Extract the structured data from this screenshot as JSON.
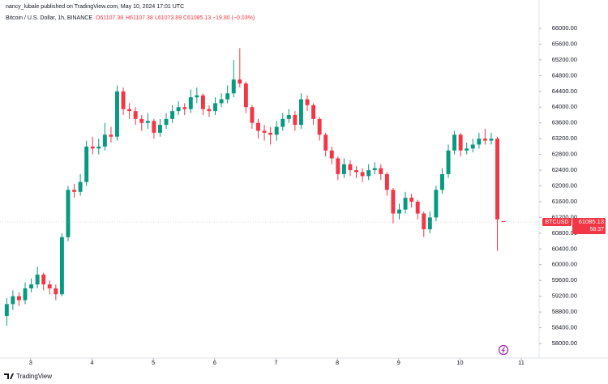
{
  "header": {
    "publisher": "nancy_lubale published on TradingView.com, May 10, 2024 17:01 UTC"
  },
  "legend": {
    "symbol": "Bitcoin / U.S. Dollar, 1h, BINANCE",
    "ohlc": [
      "O61107.38",
      "H61107.38",
      "L61073.89",
      "C61085.13"
    ],
    "change": "−19.80 (−0.03%)"
  },
  "footer": {
    "brand": "TradingView"
  },
  "chart_data": {
    "type": "candlestick",
    "x": [
      2.61,
      2.71,
      2.81,
      2.91,
      3.01,
      3.11,
      3.21,
      3.31,
      3.41,
      3.51,
      3.61,
      3.71,
      3.81,
      3.91,
      4.01,
      4.11,
      4.21,
      4.31,
      4.41,
      4.51,
      4.61,
      4.71,
      4.81,
      4.91,
      5.01,
      5.11,
      5.21,
      5.31,
      5.41,
      5.51,
      5.61,
      5.71,
      5.81,
      5.91,
      6.01,
      6.11,
      6.21,
      6.31,
      6.41,
      6.51,
      6.61,
      6.71,
      6.81,
      6.91,
      7.01,
      7.11,
      7.21,
      7.31,
      7.41,
      7.51,
      7.61,
      7.71,
      7.81,
      7.91,
      8.01,
      8.11,
      8.21,
      8.31,
      8.41,
      8.51,
      8.61,
      8.71,
      8.81,
      8.91,
      9.01,
      9.11,
      9.21,
      9.31,
      9.41,
      9.51,
      9.61,
      9.71,
      9.81,
      9.91,
      10.01,
      10.11,
      10.21,
      10.31,
      10.41,
      10.51,
      10.61,
      10.71
    ],
    "open": [
      58700,
      59000,
      59200,
      59100,
      59400,
      59500,
      59750,
      59500,
      59400,
      59250,
      60700,
      61900,
      61850,
      62100,
      63000,
      62950,
      63000,
      63300,
      63250,
      64400,
      63950,
      63900,
      63700,
      63600,
      63650,
      63350,
      63550,
      63700,
      63900,
      64000,
      63950,
      64250,
      64300,
      63950,
      63900,
      64100,
      64200,
      64350,
      64700,
      64600,
      64000,
      63600,
      63400,
      63350,
      63300,
      63500,
      63700,
      63800,
      63550,
      64200,
      64050,
      63700,
      63300,
      62900,
      62700,
      62300,
      62550,
      62400,
      62350,
      62250,
      62400,
      62450,
      62300,
      61900,
      61300,
      61400,
      61700,
      61600,
      61300,
      60900,
      61200,
      61900,
      62300,
      62900,
      63300,
      62900,
      62950,
      63050,
      63200,
      63150,
      63200,
      61107.38
    ],
    "high": [
      59150,
      59350,
      59300,
      59550,
      59650,
      59950,
      59800,
      59600,
      59500,
      60800,
      62000,
      62050,
      62300,
      63150,
      63250,
      63200,
      63600,
      63500,
      64550,
      64500,
      64100,
      64000,
      63800,
      63850,
      63700,
      63700,
      63850,
      64050,
      64150,
      64100,
      64450,
      64500,
      64350,
      64050,
      64250,
      64350,
      64550,
      65200,
      65500,
      64650,
      64050,
      63700,
      63550,
      63500,
      63650,
      63850,
      63950,
      63900,
      64350,
      64300,
      64100,
      63750,
      63350,
      63000,
      62750,
      62700,
      62650,
      62500,
      62450,
      62550,
      62600,
      62550,
      62350,
      61950,
      61550,
      61850,
      61800,
      61650,
      61350,
      61350,
      62000,
      62450,
      63050,
      63400,
      63350,
      63100,
      63200,
      63350,
      63450,
      63350,
      63250,
      61107.38
    ],
    "low": [
      58450,
      58850,
      58950,
      59000,
      59300,
      59400,
      59350,
      59250,
      59100,
      59200,
      60600,
      61700,
      61750,
      62000,
      62800,
      62800,
      62900,
      63100,
      63150,
      63800,
      63700,
      63550,
      63400,
      63450,
      63200,
      63250,
      63450,
      63600,
      63800,
      63800,
      63850,
      64100,
      63800,
      63750,
      63800,
      64000,
      64100,
      64250,
      64500,
      63850,
      63450,
      63200,
      63150,
      63050,
      63150,
      63400,
      63600,
      63400,
      63450,
      63900,
      63550,
      63150,
      62750,
      62550,
      62150,
      62200,
      62250,
      62200,
      62100,
      62150,
      62300,
      62150,
      61750,
      61050,
      61150,
      61300,
      61450,
      61150,
      60700,
      60800,
      61100,
      61800,
      62200,
      62800,
      62750,
      62800,
      62850,
      62950,
      63050,
      63050,
      60350,
      61073.89
    ],
    "close": [
      59000,
      59200,
      59100,
      59400,
      59500,
      59750,
      59500,
      59400,
      59250,
      60700,
      61900,
      61850,
      62100,
      63000,
      62950,
      63000,
      63300,
      63250,
      64400,
      63950,
      63900,
      63700,
      63600,
      63650,
      63350,
      63550,
      63700,
      63900,
      64000,
      63950,
      64250,
      64300,
      63950,
      63900,
      64100,
      64200,
      64350,
      64700,
      64600,
      64000,
      63600,
      63400,
      63350,
      63300,
      63500,
      63700,
      63800,
      63550,
      64200,
      64050,
      63700,
      63300,
      62900,
      62700,
      62300,
      62550,
      62400,
      62350,
      62250,
      62400,
      62450,
      62300,
      61900,
      61300,
      61400,
      61700,
      61600,
      61300,
      60900,
      61200,
      61900,
      62300,
      62900,
      63300,
      62900,
      62950,
      63050,
      63200,
      63150,
      63200,
      61150,
      61085.13
    ],
    "up_color": "#089981",
    "down_color": "#f23645",
    "xlim": [
      2.5,
      11.29
    ],
    "xticks": [
      3,
      4,
      5,
      6,
      7,
      8,
      9,
      10,
      11
    ],
    "ylim": [
      57630,
      66720
    ],
    "yticks": [
      {
        "value": 58000,
        "label": "58000.00"
      },
      {
        "value": 58400,
        "label": "58400.00"
      },
      {
        "value": 58800,
        "label": "58800.00"
      },
      {
        "value": 59200,
        "label": "59200.00"
      },
      {
        "value": 59600,
        "label": "59600.00"
      },
      {
        "value": 60000,
        "label": "60000.00"
      },
      {
        "value": 60400,
        "label": "60400.00"
      },
      {
        "value": 60800,
        "label": "60800.00"
      },
      {
        "value": 61200,
        "label": "61200.00"
      },
      {
        "value": 61600,
        "label": "61600.00"
      },
      {
        "value": 62000,
        "label": "62000.00"
      },
      {
        "value": 62400,
        "label": "62400.00"
      },
      {
        "value": 62800,
        "label": "62800.00"
      },
      {
        "value": 63200,
        "label": "63200.00"
      },
      {
        "value": 63600,
        "label": "63600.00"
      },
      {
        "value": 64000,
        "label": "64000.00"
      },
      {
        "value": 64400,
        "label": "64400.00"
      },
      {
        "value": 64800,
        "label": "64800.00"
      },
      {
        "value": 65200,
        "label": "65200.00"
      },
      {
        "value": 65600,
        "label": "65600.00"
      },
      {
        "value": 66000,
        "label": "66000.00"
      }
    ],
    "last_price": {
      "symbol": "BTCUSD",
      "value": 61085.13,
      "countdown": "58:37"
    }
  }
}
